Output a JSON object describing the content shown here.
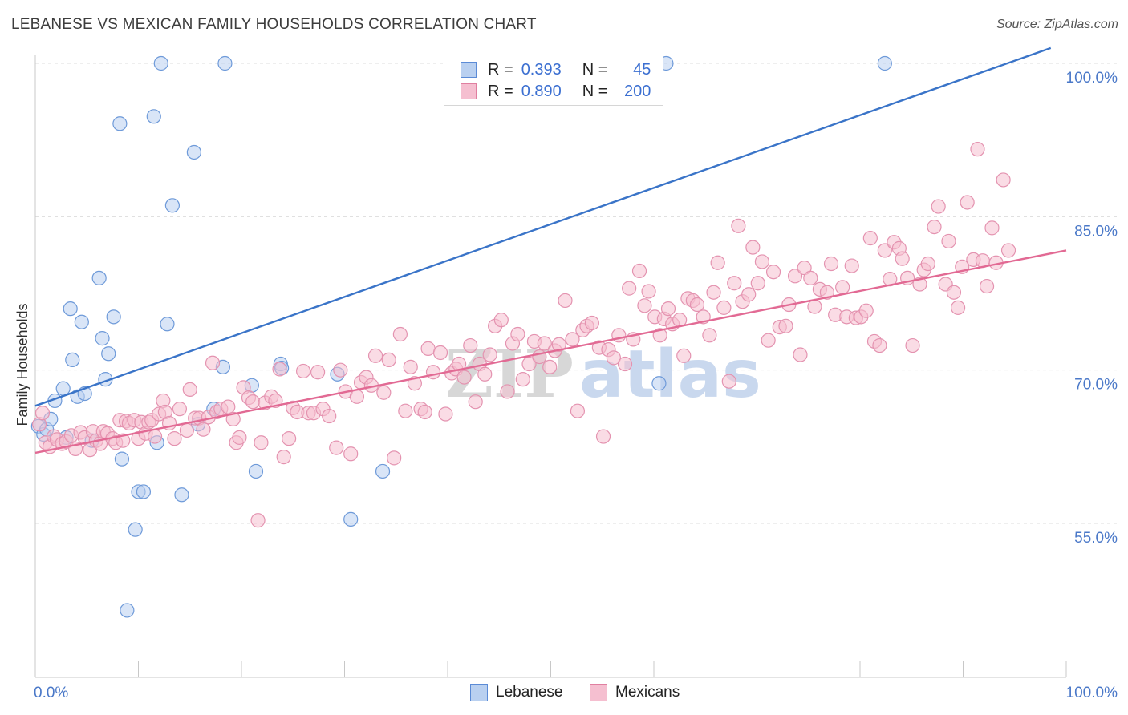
{
  "title": "LEBANESE VS MEXICAN FAMILY HOUSEHOLDS CORRELATION CHART",
  "source": "Source: ZipAtlas.com",
  "colors": {
    "blue": "#3a74c8",
    "blue_fill": "#b9d0f0",
    "pink": "#e26a94",
    "pink_fill": "#f5bfd0",
    "tick": "#4a78c8",
    "grid": "#dcdcdc"
  },
  "legend": {
    "lebanese": {
      "r_label": "R =",
      "r_value": "0.393",
      "n_label": "N =",
      "n_value": "45"
    },
    "mexicans": {
      "r_label": "R =",
      "r_value": "0.890",
      "n_label": "N =",
      "n_value": "200"
    }
  },
  "bottom_legend": {
    "lebanese": "Lebanese",
    "mexicans": "Mexicans"
  },
  "watermark": {
    "zip": "ZIP",
    "atlas": "atlas"
  },
  "chart_data": {
    "type": "scatter",
    "title": "LEBANESE VS MEXICAN FAMILY HOUSEHOLDS CORRELATION CHART",
    "xlabel": "",
    "ylabel": "Family Households",
    "xlim": [
      0,
      100
    ],
    "ylim": [
      40.5,
      101.5
    ],
    "x_tick_labels": [
      "0.0%",
      "100.0%"
    ],
    "y_ticks": [
      55,
      70,
      85,
      100
    ],
    "y_tick_labels": [
      "55.0%",
      "70.0%",
      "85.0%",
      "100.0%"
    ],
    "grid": true,
    "series": [
      {
        "name": "Lebanese",
        "trend": {
          "x": [
            0,
            98.5
          ],
          "y": [
            66.5,
            101.5
          ]
        },
        "points": [
          [
            0.3,
            64.5
          ],
          [
            0.8,
            63.7
          ],
          [
            1.1,
            64.2
          ],
          [
            1.5,
            65.2
          ],
          [
            1.9,
            67.0
          ],
          [
            2.7,
            68.2
          ],
          [
            3.0,
            63.4
          ],
          [
            3.4,
            76.0
          ],
          [
            3.6,
            71.0
          ],
          [
            4.1,
            67.4
          ],
          [
            4.5,
            74.7
          ],
          [
            4.8,
            67.7
          ],
          [
            5.5,
            63.1
          ],
          [
            6.2,
            79.0
          ],
          [
            6.5,
            73.1
          ],
          [
            6.8,
            69.1
          ],
          [
            7.1,
            71.6
          ],
          [
            7.6,
            75.2
          ],
          [
            8.2,
            94.1
          ],
          [
            8.4,
            61.3
          ],
          [
            8.9,
            46.5
          ],
          [
            9.7,
            54.4
          ],
          [
            10.0,
            58.1
          ],
          [
            10.5,
            58.1
          ],
          [
            11.5,
            94.8
          ],
          [
            11.8,
            62.9
          ],
          [
            12.2,
            100.0
          ],
          [
            12.8,
            74.5
          ],
          [
            13.3,
            86.1
          ],
          [
            14.2,
            57.8
          ],
          [
            15.4,
            91.3
          ],
          [
            15.8,
            64.7
          ],
          [
            17.3,
            66.2
          ],
          [
            18.2,
            70.3
          ],
          [
            18.4,
            100.0
          ],
          [
            21.0,
            68.5
          ],
          [
            21.4,
            60.1
          ],
          [
            23.8,
            70.6
          ],
          [
            23.9,
            70.2
          ],
          [
            29.3,
            69.6
          ],
          [
            30.6,
            55.4
          ],
          [
            33.7,
            60.1
          ],
          [
            60.5,
            68.7
          ],
          [
            61.2,
            100.0
          ],
          [
            82.4,
            100.0
          ]
        ]
      },
      {
        "name": "Mexicans",
        "trend": {
          "x": [
            0,
            100
          ],
          "y": [
            61.9,
            81.7
          ]
        },
        "points": [
          [
            0.4,
            64.7
          ],
          [
            0.7,
            65.8
          ],
          [
            1.0,
            62.9
          ],
          [
            1.4,
            62.5
          ],
          [
            1.8,
            63.5
          ],
          [
            2.1,
            63.2
          ],
          [
            2.6,
            62.8
          ],
          [
            3.0,
            63.0
          ],
          [
            3.5,
            63.6
          ],
          [
            3.9,
            62.3
          ],
          [
            4.4,
            63.9
          ],
          [
            4.8,
            63.4
          ],
          [
            5.3,
            62.2
          ],
          [
            5.6,
            64.0
          ],
          [
            5.9,
            63.1
          ],
          [
            6.3,
            62.8
          ],
          [
            6.6,
            64.0
          ],
          [
            7.0,
            63.8
          ],
          [
            7.5,
            63.3
          ],
          [
            7.8,
            62.9
          ],
          [
            8.2,
            65.1
          ],
          [
            8.5,
            63.1
          ],
          [
            8.8,
            65.0
          ],
          [
            9.1,
            64.8
          ],
          [
            9.6,
            65.1
          ],
          [
            10.0,
            63.3
          ],
          [
            10.3,
            64.9
          ],
          [
            10.7,
            63.8
          ],
          [
            11.0,
            64.9
          ],
          [
            11.3,
            65.1
          ],
          [
            11.6,
            63.5
          ],
          [
            12.0,
            65.7
          ],
          [
            12.4,
            67.0
          ],
          [
            12.6,
            65.9
          ],
          [
            13.0,
            64.8
          ],
          [
            13.5,
            63.3
          ],
          [
            14.0,
            66.2
          ],
          [
            14.7,
            64.1
          ],
          [
            15.0,
            68.1
          ],
          [
            15.5,
            65.3
          ],
          [
            15.9,
            65.3
          ],
          [
            16.3,
            64.2
          ],
          [
            16.8,
            65.4
          ],
          [
            17.2,
            70.7
          ],
          [
            17.6,
            65.9
          ],
          [
            18.0,
            66.2
          ],
          [
            18.7,
            66.4
          ],
          [
            19.2,
            65.2
          ],
          [
            19.5,
            62.9
          ],
          [
            19.8,
            63.4
          ],
          [
            20.2,
            68.3
          ],
          [
            20.7,
            67.3
          ],
          [
            21.1,
            66.9
          ],
          [
            21.6,
            55.3
          ],
          [
            21.9,
            62.9
          ],
          [
            22.3,
            66.8
          ],
          [
            22.9,
            67.4
          ],
          [
            23.3,
            67.0
          ],
          [
            23.7,
            70.1
          ],
          [
            24.1,
            61.5
          ],
          [
            24.6,
            63.3
          ],
          [
            25.0,
            66.3
          ],
          [
            25.4,
            65.9
          ],
          [
            26.0,
            69.9
          ],
          [
            26.5,
            65.8
          ],
          [
            27.0,
            65.8
          ],
          [
            27.4,
            69.8
          ],
          [
            27.9,
            66.2
          ],
          [
            28.5,
            65.5
          ],
          [
            29.2,
            62.4
          ],
          [
            29.6,
            70.0
          ],
          [
            30.1,
            67.9
          ],
          [
            30.6,
            61.8
          ],
          [
            31.2,
            67.4
          ],
          [
            31.6,
            68.8
          ],
          [
            32.1,
            69.3
          ],
          [
            32.6,
            68.5
          ],
          [
            33.0,
            71.4
          ],
          [
            33.8,
            67.8
          ],
          [
            34.3,
            71.0
          ],
          [
            34.8,
            61.4
          ],
          [
            35.4,
            73.5
          ],
          [
            35.9,
            66.0
          ],
          [
            36.4,
            70.3
          ],
          [
            36.8,
            68.7
          ],
          [
            37.4,
            66.2
          ],
          [
            37.8,
            65.9
          ],
          [
            38.1,
            72.1
          ],
          [
            38.6,
            69.8
          ],
          [
            39.3,
            71.7
          ],
          [
            39.8,
            65.7
          ],
          [
            40.4,
            69.7
          ],
          [
            40.8,
            70.1
          ],
          [
            41.1,
            70.6
          ],
          [
            41.6,
            69.3
          ],
          [
            42.2,
            72.4
          ],
          [
            42.7,
            66.9
          ],
          [
            43.1,
            70.6
          ],
          [
            43.6,
            69.6
          ],
          [
            44.1,
            71.5
          ],
          [
            44.6,
            74.3
          ],
          [
            45.2,
            74.9
          ],
          [
            45.8,
            67.9
          ],
          [
            46.3,
            72.6
          ],
          [
            46.8,
            73.5
          ],
          [
            47.3,
            69.1
          ],
          [
            47.9,
            70.6
          ],
          [
            48.4,
            72.8
          ],
          [
            48.9,
            71.3
          ],
          [
            49.4,
            72.6
          ],
          [
            49.9,
            70.3
          ],
          [
            50.4,
            71.9
          ],
          [
            50.8,
            72.5
          ],
          [
            51.4,
            76.8
          ],
          [
            52.1,
            73.0
          ],
          [
            52.6,
            66.0
          ],
          [
            53.1,
            73.9
          ],
          [
            53.5,
            74.3
          ],
          [
            54.0,
            74.6
          ],
          [
            54.7,
            72.2
          ],
          [
            55.1,
            63.5
          ],
          [
            55.6,
            72.0
          ],
          [
            56.1,
            71.2
          ],
          [
            56.6,
            73.4
          ],
          [
            57.2,
            70.6
          ],
          [
            57.6,
            78.0
          ],
          [
            58.0,
            73.0
          ],
          [
            58.6,
            79.7
          ],
          [
            59.1,
            76.3
          ],
          [
            59.5,
            77.7
          ],
          [
            60.1,
            75.2
          ],
          [
            60.6,
            73.4
          ],
          [
            61.0,
            75.0
          ],
          [
            61.4,
            76.0
          ],
          [
            61.8,
            74.5
          ],
          [
            62.5,
            74.9
          ],
          [
            62.9,
            71.4
          ],
          [
            63.3,
            77.0
          ],
          [
            63.8,
            76.8
          ],
          [
            64.2,
            76.4
          ],
          [
            64.8,
            75.2
          ],
          [
            65.4,
            73.4
          ],
          [
            65.8,
            77.6
          ],
          [
            66.2,
            80.5
          ],
          [
            66.8,
            76.1
          ],
          [
            67.3,
            68.9
          ],
          [
            67.8,
            78.5
          ],
          [
            68.2,
            84.1
          ],
          [
            68.6,
            76.7
          ],
          [
            69.2,
            77.4
          ],
          [
            69.6,
            82.0
          ],
          [
            70.1,
            78.5
          ],
          [
            70.5,
            80.6
          ],
          [
            71.1,
            72.9
          ],
          [
            71.6,
            79.6
          ],
          [
            72.2,
            74.2
          ],
          [
            72.8,
            74.3
          ],
          [
            73.1,
            76.4
          ],
          [
            73.7,
            79.2
          ],
          [
            74.2,
            71.5
          ],
          [
            74.6,
            80.0
          ],
          [
            75.2,
            79.0
          ],
          [
            75.6,
            76.2
          ],
          [
            76.1,
            77.9
          ],
          [
            76.8,
            77.6
          ],
          [
            77.2,
            80.4
          ],
          [
            77.6,
            75.4
          ],
          [
            78.3,
            78.1
          ],
          [
            78.7,
            75.2
          ],
          [
            79.2,
            80.2
          ],
          [
            79.6,
            75.1
          ],
          [
            80.1,
            75.2
          ],
          [
            80.6,
            75.8
          ],
          [
            81.0,
            82.9
          ],
          [
            81.4,
            72.8
          ],
          [
            81.9,
            72.4
          ],
          [
            82.4,
            81.7
          ],
          [
            82.9,
            78.9
          ],
          [
            83.3,
            82.5
          ],
          [
            83.8,
            81.9
          ],
          [
            84.1,
            80.9
          ],
          [
            84.6,
            79.0
          ],
          [
            85.1,
            72.4
          ],
          [
            85.8,
            78.4
          ],
          [
            86.2,
            79.8
          ],
          [
            86.6,
            80.4
          ],
          [
            87.2,
            84.0
          ],
          [
            87.6,
            86.0
          ],
          [
            88.3,
            78.4
          ],
          [
            88.6,
            82.6
          ],
          [
            89.1,
            77.6
          ],
          [
            89.5,
            76.1
          ],
          [
            89.9,
            80.1
          ],
          [
            90.4,
            86.4
          ],
          [
            91.0,
            80.8
          ],
          [
            91.4,
            91.6
          ],
          [
            91.9,
            80.7
          ],
          [
            92.3,
            78.2
          ],
          [
            92.8,
            83.9
          ],
          [
            93.2,
            80.5
          ],
          [
            93.9,
            88.6
          ],
          [
            94.4,
            81.7
          ]
        ]
      }
    ]
  }
}
